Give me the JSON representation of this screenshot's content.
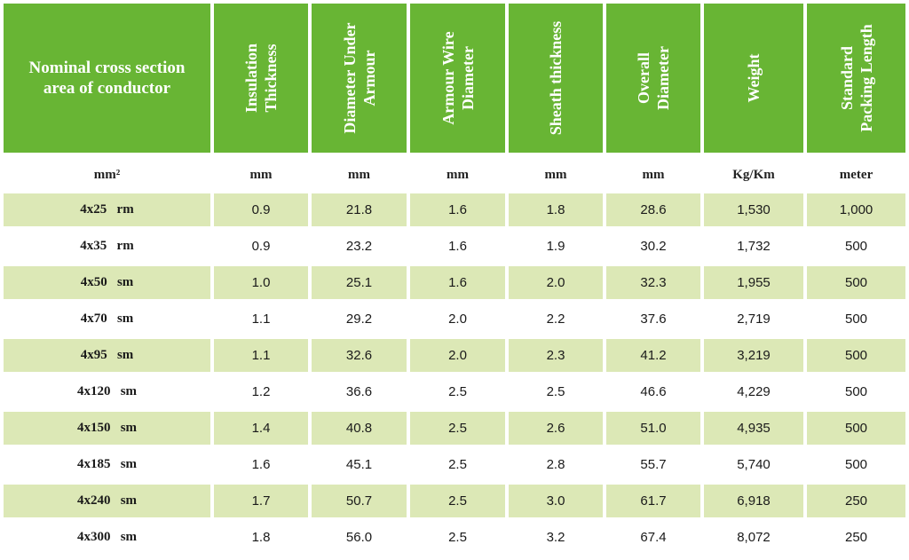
{
  "header": {
    "col0": "Nominal cross section\narea of conductor",
    "col1": "Insulation\nThickness",
    "col2": "Diameter Under\nArmour",
    "col3": "Armour Wire\nDiameter",
    "col4": "Sheath thickness",
    "col5": "Overall\nDiameter",
    "col6": "Weight",
    "col7": "Standard\nPacking Length"
  },
  "units": [
    "mm²",
    "mm",
    "mm",
    "mm",
    "mm",
    "mm",
    "Kg/Km",
    "meter"
  ],
  "rows": [
    {
      "conductor": "4x25   rm",
      "insulation": "0.9",
      "dia_under_armour": "21.8",
      "armour_wire": "1.6",
      "sheath": "1.8",
      "overall": "28.6",
      "weight": "1,530",
      "packing": "1,000"
    },
    {
      "conductor": "4x35   rm",
      "insulation": "0.9",
      "dia_under_armour": "23.2",
      "armour_wire": "1.6",
      "sheath": "1.9",
      "overall": "30.2",
      "weight": "1,732",
      "packing": "500"
    },
    {
      "conductor": "4x50   sm",
      "insulation": "1.0",
      "dia_under_armour": "25.1",
      "armour_wire": "1.6",
      "sheath": "2.0",
      "overall": "32.3",
      "weight": "1,955",
      "packing": "500"
    },
    {
      "conductor": "4x70   sm",
      "insulation": "1.1",
      "dia_under_armour": "29.2",
      "armour_wire": "2.0",
      "sheath": "2.2",
      "overall": "37.6",
      "weight": "2,719",
      "packing": "500"
    },
    {
      "conductor": "4x95   sm",
      "insulation": "1.1",
      "dia_under_armour": "32.6",
      "armour_wire": "2.0",
      "sheath": "2.3",
      "overall": "41.2",
      "weight": "3,219",
      "packing": "500"
    },
    {
      "conductor": "4x120   sm",
      "insulation": "1.2",
      "dia_under_armour": "36.6",
      "armour_wire": "2.5",
      "sheath": "2.5",
      "overall": "46.6",
      "weight": "4,229",
      "packing": "500"
    },
    {
      "conductor": "4x150   sm",
      "insulation": "1.4",
      "dia_under_armour": "40.8",
      "armour_wire": "2.5",
      "sheath": "2.6",
      "overall": "51.0",
      "weight": "4,935",
      "packing": "500"
    },
    {
      "conductor": "4x185   sm",
      "insulation": "1.6",
      "dia_under_armour": "45.1",
      "armour_wire": "2.5",
      "sheath": "2.8",
      "overall": "55.7",
      "weight": "5,740",
      "packing": "500"
    },
    {
      "conductor": "4x240   sm",
      "insulation": "1.7",
      "dia_under_armour": "50.7",
      "armour_wire": "2.5",
      "sheath": "3.0",
      "overall": "61.7",
      "weight": "6,918",
      "packing": "250"
    },
    {
      "conductor": "4x300   sm",
      "insulation": "1.8",
      "dia_under_armour": "56.0",
      "armour_wire": "2.5",
      "sheath": "3.2",
      "overall": "67.4",
      "weight": "8,072",
      "packing": "250"
    }
  ],
  "colors": {
    "header_green": "#68b534",
    "row_shade": "#dce8b6",
    "header_text": "#ffffff"
  }
}
